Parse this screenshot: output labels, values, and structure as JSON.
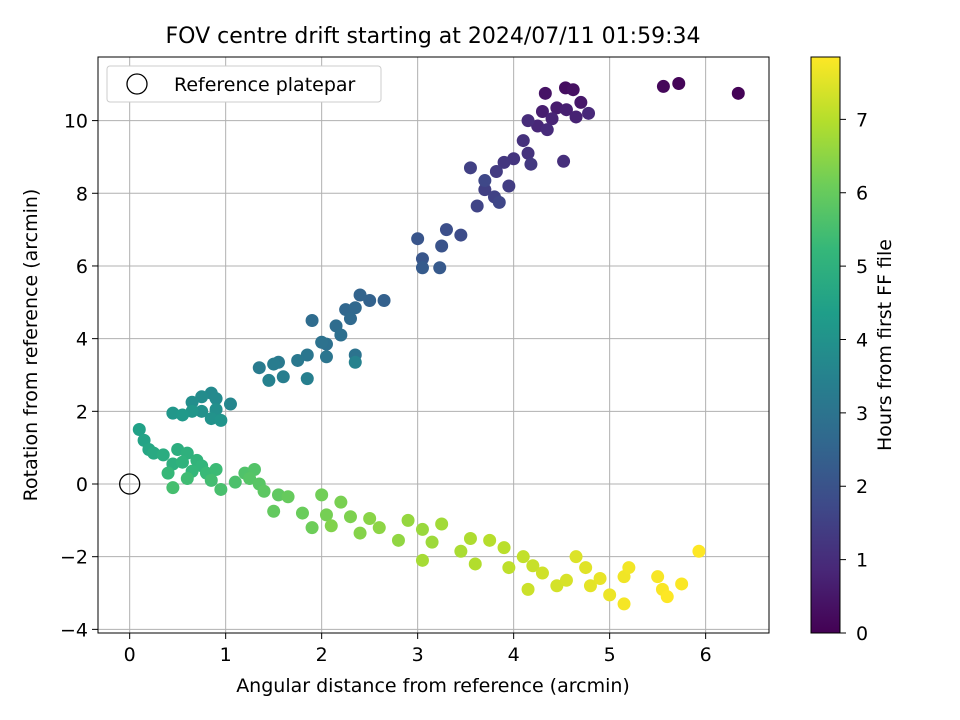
{
  "chart_data": {
    "type": "scatter",
    "title": "FOV centre drift starting at 2024/07/11 01:59:34",
    "xlabel": "Angular distance from reference (arcmin)",
    "ylabel": "Rotation from reference (arcmin)",
    "xlim": [
      -0.33,
      6.66
    ],
    "ylim": [
      -4.1,
      11.75
    ],
    "xticks": [
      0,
      1,
      2,
      3,
      4,
      5,
      6
    ],
    "yticks": [
      -4,
      -2,
      0,
      2,
      4,
      6,
      8,
      10
    ],
    "grid": true,
    "legend": {
      "placement": "top-left",
      "entries": [
        "Reference platepar"
      ]
    },
    "reference_point": {
      "x": 0,
      "y": 0
    },
    "colorbar": {
      "label": "Hours from first FF file",
      "range": [
        0,
        7.85
      ],
      "ticks": [
        0,
        1,
        2,
        3,
        4,
        5,
        6,
        7
      ],
      "colormap": "viridis"
    },
    "series": [
      {
        "points": [
          [
            6.34,
            10.75,
            0.05
          ],
          [
            5.72,
            11.02,
            0.1
          ],
          [
            5.56,
            10.94,
            0.15
          ],
          [
            4.54,
            10.9,
            0.3
          ],
          [
            4.62,
            10.85,
            0.35
          ],
          [
            4.33,
            10.75,
            0.4
          ],
          [
            4.7,
            10.5,
            0.5
          ],
          [
            4.45,
            10.35,
            0.6
          ],
          [
            4.3,
            10.25,
            0.65
          ],
          [
            4.55,
            10.3,
            0.7
          ],
          [
            4.65,
            10.1,
            0.75
          ],
          [
            4.4,
            10.05,
            0.8
          ],
          [
            4.25,
            9.85,
            0.85
          ],
          [
            4.78,
            10.2,
            0.9
          ],
          [
            4.35,
            9.75,
            0.95
          ],
          [
            4.15,
            10.0,
            1.0
          ],
          [
            4.52,
            8.88,
            1.05
          ],
          [
            4.1,
            9.45,
            1.1
          ],
          [
            4.15,
            9.1,
            1.15
          ],
          [
            4.0,
            8.95,
            1.2
          ],
          [
            3.9,
            8.85,
            1.25
          ],
          [
            4.18,
            8.8,
            1.3
          ],
          [
            3.82,
            8.6,
            1.35
          ],
          [
            3.95,
            8.2,
            1.4
          ],
          [
            3.7,
            8.1,
            1.45
          ],
          [
            3.55,
            8.7,
            1.5
          ],
          [
            3.8,
            7.9,
            1.55
          ],
          [
            3.62,
            7.65,
            1.6
          ],
          [
            3.85,
            7.75,
            1.65
          ],
          [
            3.7,
            8.35,
            1.7
          ],
          [
            3.45,
            6.85,
            1.8
          ],
          [
            3.3,
            7.0,
            1.9
          ],
          [
            3.25,
            6.55,
            2.0
          ],
          [
            3.0,
            6.75,
            2.05
          ],
          [
            3.05,
            6.2,
            2.1
          ],
          [
            3.23,
            5.95,
            2.2
          ],
          [
            3.05,
            5.95,
            2.25
          ],
          [
            2.65,
            5.05,
            2.4
          ],
          [
            2.5,
            5.05,
            2.45
          ],
          [
            2.4,
            5.2,
            2.5
          ],
          [
            2.25,
            4.8,
            2.6
          ],
          [
            2.35,
            4.85,
            2.65
          ],
          [
            2.3,
            4.55,
            2.7
          ],
          [
            1.9,
            4.5,
            2.75
          ],
          [
            2.15,
            4.35,
            2.8
          ],
          [
            2.2,
            4.1,
            2.85
          ],
          [
            2.05,
            3.85,
            2.9
          ],
          [
            2.0,
            3.9,
            2.95
          ],
          [
            2.35,
            3.55,
            3.0
          ],
          [
            2.05,
            3.5,
            3.05
          ],
          [
            1.85,
            3.55,
            3.1
          ],
          [
            1.75,
            3.4,
            3.15
          ],
          [
            1.55,
            3.35,
            3.2
          ],
          [
            1.35,
            3.2,
            3.25
          ],
          [
            1.5,
            3.3,
            3.3
          ],
          [
            1.6,
            2.95,
            3.35
          ],
          [
            1.85,
            2.9,
            3.4
          ],
          [
            1.45,
            2.85,
            3.45
          ],
          [
            2.35,
            3.35,
            3.5
          ],
          [
            1.05,
            2.2,
            3.6
          ],
          [
            0.85,
            2.5,
            3.7
          ],
          [
            0.9,
            2.35,
            3.75
          ],
          [
            0.75,
            2.4,
            3.8
          ],
          [
            0.65,
            2.25,
            3.85
          ],
          [
            0.9,
            2.05,
            3.9
          ],
          [
            0.75,
            2.0,
            3.95
          ],
          [
            0.85,
            1.8,
            4.0
          ],
          [
            0.95,
            1.75,
            4.05
          ],
          [
            0.65,
            2.0,
            4.1
          ],
          [
            0.45,
            1.95,
            4.15
          ],
          [
            0.55,
            1.9,
            4.2
          ],
          [
            0.1,
            1.5,
            4.45
          ],
          [
            0.15,
            1.2,
            4.55
          ],
          [
            0.2,
            0.95,
            4.65
          ],
          [
            0.25,
            0.85,
            4.75
          ],
          [
            0.35,
            0.8,
            4.85
          ],
          [
            0.5,
            0.95,
            4.9
          ],
          [
            0.45,
            0.55,
            4.95
          ],
          [
            0.6,
            0.85,
            5.0
          ],
          [
            0.55,
            0.6,
            5.05
          ],
          [
            0.7,
            0.65,
            5.1
          ],
          [
            0.75,
            0.5,
            5.15
          ],
          [
            0.65,
            0.35,
            5.2
          ],
          [
            0.4,
            0.3,
            5.25
          ],
          [
            0.8,
            0.3,
            5.3
          ],
          [
            0.9,
            0.4,
            5.35
          ],
          [
            0.6,
            0.15,
            5.4
          ],
          [
            0.85,
            0.1,
            5.45
          ],
          [
            0.45,
            -0.1,
            5.5
          ],
          [
            0.95,
            -0.15,
            5.55
          ],
          [
            1.1,
            0.05,
            5.6
          ],
          [
            1.2,
            0.3,
            5.65
          ],
          [
            1.3,
            0.4,
            5.7
          ],
          [
            1.25,
            0.15,
            5.75
          ],
          [
            1.35,
            0.0,
            5.8
          ],
          [
            1.4,
            -0.2,
            5.85
          ],
          [
            1.55,
            -0.3,
            5.9
          ],
          [
            1.5,
            -0.75,
            5.95
          ],
          [
            1.65,
            -0.35,
            6.0
          ],
          [
            1.8,
            -0.8,
            6.05
          ],
          [
            1.9,
            -1.2,
            6.1
          ],
          [
            2.0,
            -0.3,
            6.15
          ],
          [
            2.05,
            -0.85,
            6.2
          ],
          [
            2.2,
            -0.5,
            6.25
          ],
          [
            2.3,
            -0.9,
            6.3
          ],
          [
            2.1,
            -1.15,
            6.35
          ],
          [
            2.4,
            -1.35,
            6.4
          ],
          [
            2.5,
            -0.95,
            6.45
          ],
          [
            2.6,
            -1.2,
            6.5
          ],
          [
            2.8,
            -1.55,
            6.55
          ],
          [
            2.9,
            -1.0,
            6.6
          ],
          [
            3.05,
            -1.25,
            6.65
          ],
          [
            3.15,
            -1.6,
            6.7
          ],
          [
            3.25,
            -1.1,
            6.75
          ],
          [
            3.05,
            -2.1,
            6.8
          ],
          [
            3.45,
            -1.85,
            6.85
          ],
          [
            3.55,
            -1.5,
            6.9
          ],
          [
            3.6,
            -2.2,
            6.95
          ],
          [
            3.75,
            -1.55,
            7.0
          ],
          [
            3.9,
            -1.75,
            7.05
          ],
          [
            3.95,
            -2.3,
            7.1
          ],
          [
            4.1,
            -2.0,
            7.15
          ],
          [
            4.2,
            -2.25,
            7.2
          ],
          [
            4.15,
            -2.9,
            7.25
          ],
          [
            4.3,
            -2.45,
            7.3
          ],
          [
            4.45,
            -2.8,
            7.35
          ],
          [
            4.55,
            -2.65,
            7.4
          ],
          [
            4.65,
            -2.0,
            7.45
          ],
          [
            4.75,
            -2.3,
            7.5
          ],
          [
            4.8,
            -2.8,
            7.55
          ],
          [
            4.9,
            -2.6,
            7.6
          ],
          [
            5.0,
            -3.05,
            7.65
          ],
          [
            5.15,
            -2.55,
            7.7
          ],
          [
            5.2,
            -2.3,
            7.72
          ],
          [
            5.15,
            -3.3,
            7.75
          ],
          [
            5.5,
            -2.55,
            7.78
          ],
          [
            5.55,
            -2.9,
            7.8
          ],
          [
            5.75,
            -2.75,
            7.82
          ],
          [
            5.93,
            -1.85,
            7.85
          ],
          [
            5.6,
            -3.1,
            7.85
          ]
        ]
      }
    ]
  }
}
